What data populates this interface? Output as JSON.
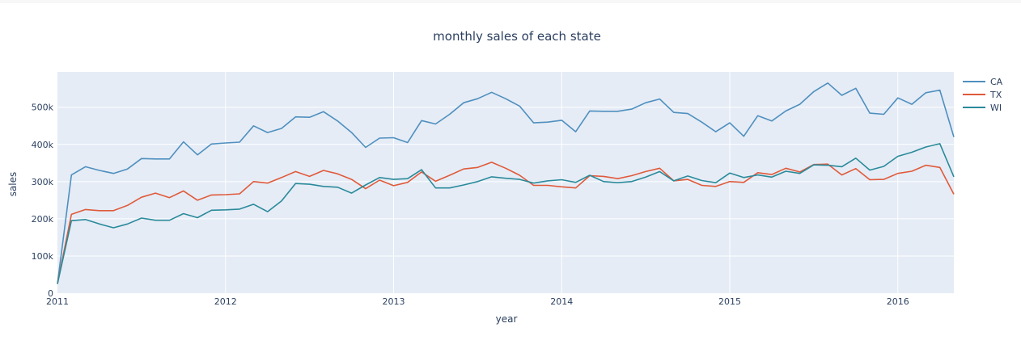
{
  "chart_data": {
    "type": "line",
    "title": "monthly sales of each state",
    "xlabel": "year",
    "ylabel": "sales",
    "xlim": [
      "2011-01",
      "2016-05"
    ],
    "ylim": [
      0,
      595000
    ],
    "x_tick_labels": [
      "2011",
      "2012",
      "2013",
      "2014",
      "2015",
      "2016"
    ],
    "y_tick_labels": [
      "0",
      "100k",
      "200k",
      "300k",
      "400k",
      "500k"
    ],
    "y_tick_values": [
      0,
      100000,
      200000,
      300000,
      400000,
      500000
    ],
    "legend_position": "top-right",
    "grid": true,
    "colors": {
      "background": "#e5ecf6",
      "grid": "#ffffff"
    },
    "x": [
      "2011-01",
      "2011-02",
      "2011-03",
      "2011-04",
      "2011-05",
      "2011-06",
      "2011-07",
      "2011-08",
      "2011-09",
      "2011-10",
      "2011-11",
      "2011-12",
      "2012-01",
      "2012-02",
      "2012-03",
      "2012-04",
      "2012-05",
      "2012-06",
      "2012-07",
      "2012-08",
      "2012-09",
      "2012-10",
      "2012-11",
      "2012-12",
      "2013-01",
      "2013-02",
      "2013-03",
      "2013-04",
      "2013-05",
      "2013-06",
      "2013-07",
      "2013-08",
      "2013-09",
      "2013-10",
      "2013-11",
      "2013-12",
      "2014-01",
      "2014-02",
      "2014-03",
      "2014-04",
      "2014-05",
      "2014-06",
      "2014-07",
      "2014-08",
      "2014-09",
      "2014-10",
      "2014-11",
      "2014-12",
      "2015-01",
      "2015-02",
      "2015-03",
      "2015-04",
      "2015-05",
      "2015-06",
      "2015-07",
      "2015-08",
      "2015-09",
      "2015-10",
      "2015-11",
      "2015-12",
      "2016-01",
      "2016-02",
      "2016-03",
      "2016-04",
      "2016-05"
    ],
    "series": [
      {
        "name": "CA",
        "color": "#4f8fbe",
        "values": [
          25000,
          318000,
          340000,
          330000,
          322000,
          334000,
          362000,
          361000,
          361000,
          407000,
          372000,
          401000,
          404000,
          406000,
          450000,
          432000,
          443000,
          474000,
          473000,
          488000,
          463000,
          432000,
          392000,
          417000,
          418000,
          405000,
          464000,
          455000,
          481000,
          512000,
          523000,
          540000,
          523000,
          503000,
          458000,
          460000,
          465000,
          434000,
          490000,
          489000,
          489000,
          495000,
          512000,
          522000,
          486000,
          483000,
          460000,
          434000,
          458000,
          422000,
          477000,
          463000,
          490000,
          508000,
          542000,
          565000,
          532000,
          551000,
          484000,
          481000,
          525000,
          508000,
          539000,
          546000,
          420000
        ]
      },
      {
        "name": "TX",
        "color": "#e05a3a",
        "values": [
          25000,
          212000,
          225000,
          222000,
          222000,
          236000,
          258000,
          269000,
          257000,
          275000,
          250000,
          264000,
          265000,
          267000,
          300000,
          296000,
          311000,
          327000,
          314000,
          330000,
          321000,
          306000,
          281000,
          304000,
          289000,
          298000,
          326000,
          301000,
          317000,
          334000,
          338000,
          352000,
          336000,
          317000,
          290000,
          290000,
          286000,
          283000,
          316000,
          314000,
          308000,
          316000,
          327000,
          336000,
          302000,
          306000,
          290000,
          287000,
          300000,
          298000,
          324000,
          319000,
          336000,
          326000,
          346000,
          347000,
          318000,
          335000,
          305000,
          306000,
          322000,
          328000,
          344000,
          338000,
          266000
        ]
      },
      {
        "name": "WI",
        "color": "#2a8a9a",
        "values": [
          25000,
          195000,
          198000,
          186000,
          176000,
          186000,
          202000,
          196000,
          196000,
          214000,
          203000,
          223000,
          224000,
          226000,
          239000,
          219000,
          248000,
          295000,
          293000,
          287000,
          285000,
          269000,
          291000,
          311000,
          306000,
          308000,
          332000,
          283000,
          283000,
          291000,
          300000,
          313000,
          309000,
          306000,
          296000,
          302000,
          305000,
          298000,
          317000,
          300000,
          297000,
          300000,
          312000,
          327000,
          302000,
          315000,
          303000,
          297000,
          323000,
          311000,
          318000,
          312000,
          328000,
          322000,
          345000,
          344000,
          340000,
          363000,
          331000,
          341000,
          368000,
          379000,
          393000,
          402000,
          313000
        ]
      }
    ]
  }
}
